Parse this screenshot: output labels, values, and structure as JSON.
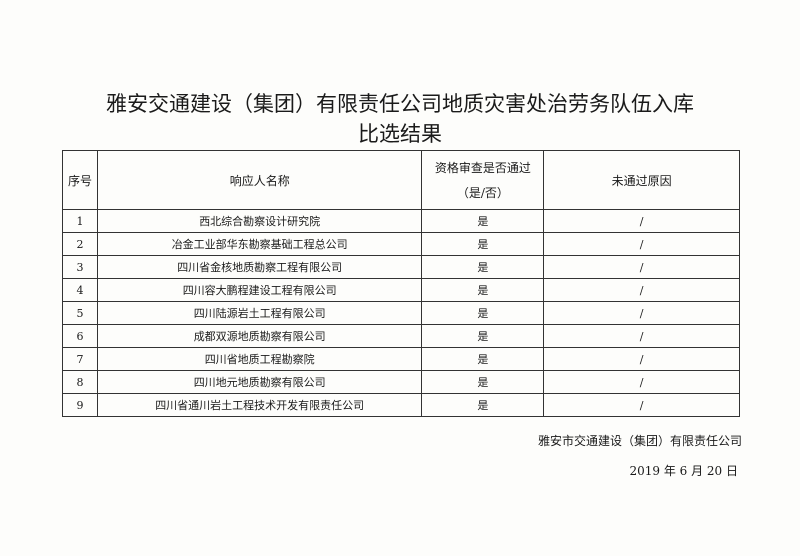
{
  "title": {
    "line1": "雅安交通建设（集团）有限责任公司地质灾害处治劳务队伍入库",
    "line2": "比选结果"
  },
  "table": {
    "headers": {
      "index": "序号",
      "name": "响应人名称",
      "pass_line1": "资格审查是否通过",
      "pass_line2": "（是/否）",
      "reason": "未通过原因"
    },
    "rows": [
      {
        "index": "1",
        "name": "西北综合勘察设计研究院",
        "pass": "是",
        "reason": "/"
      },
      {
        "index": "2",
        "name": "冶金工业部华东勘察基础工程总公司",
        "pass": "是",
        "reason": "/"
      },
      {
        "index": "3",
        "name": "四川省金核地质勘察工程有限公司",
        "pass": "是",
        "reason": "/"
      },
      {
        "index": "4",
        "name": "四川容大鹏程建设工程有限公司",
        "pass": "是",
        "reason": "/"
      },
      {
        "index": "5",
        "name": "四川陆源岩土工程有限公司",
        "pass": "是",
        "reason": "/"
      },
      {
        "index": "6",
        "name": "成都双源地质勘察有限公司",
        "pass": "是",
        "reason": "/"
      },
      {
        "index": "7",
        "name": "四川省地质工程勘察院",
        "pass": "是",
        "reason": "/"
      },
      {
        "index": "8",
        "name": "四川地元地质勘察有限公司",
        "pass": "是",
        "reason": "/"
      },
      {
        "index": "9",
        "name": "四川省通川岩土工程技术开发有限责任公司",
        "pass": "是",
        "reason": "/"
      }
    ]
  },
  "footer": {
    "company": "雅安市交通建设（集团）有限责任公司",
    "date": "2019 年 6 月 20 日"
  }
}
